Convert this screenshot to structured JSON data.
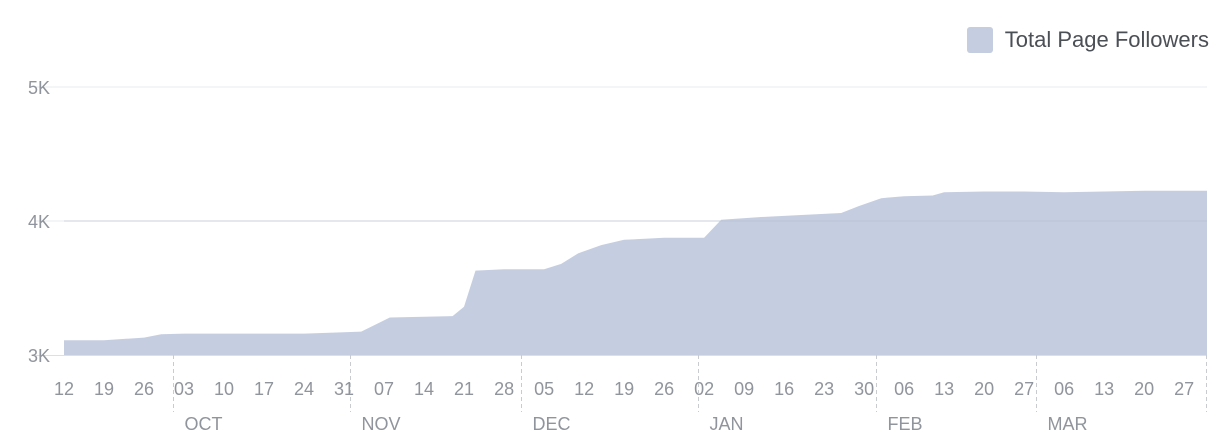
{
  "chart_data": {
    "type": "area",
    "legend": {
      "label": "Total Page Followers",
      "position": "top-right"
    },
    "colors": {
      "fill": "#c5cde0",
      "grid": "#e9ebee",
      "tick_text": "#90949c",
      "divider": "#c8cbd0"
    },
    "ylim": [
      3000,
      5000
    ],
    "yticks": [
      {
        "value": 3000,
        "label": "3K"
      },
      {
        "value": 4000,
        "label": "4K"
      },
      {
        "value": 5000,
        "label": "5K"
      }
    ],
    "xlim": [
      "2017-09-12",
      "2018-03-31"
    ],
    "xticks": [
      {
        "date": "2017-09-12",
        "label": "12"
      },
      {
        "date": "2017-09-19",
        "label": "19"
      },
      {
        "date": "2017-09-26",
        "label": "26"
      },
      {
        "date": "2017-10-03",
        "label": "03"
      },
      {
        "date": "2017-10-10",
        "label": "10"
      },
      {
        "date": "2017-10-17",
        "label": "17"
      },
      {
        "date": "2017-10-24",
        "label": "24"
      },
      {
        "date": "2017-10-31",
        "label": "31"
      },
      {
        "date": "2017-11-07",
        "label": "07"
      },
      {
        "date": "2017-11-14",
        "label": "14"
      },
      {
        "date": "2017-11-21",
        "label": "21"
      },
      {
        "date": "2017-11-28",
        "label": "28"
      },
      {
        "date": "2017-12-05",
        "label": "05"
      },
      {
        "date": "2017-12-12",
        "label": "12"
      },
      {
        "date": "2017-12-19",
        "label": "19"
      },
      {
        "date": "2017-12-26",
        "label": "26"
      },
      {
        "date": "2018-01-02",
        "label": "02"
      },
      {
        "date": "2018-01-09",
        "label": "09"
      },
      {
        "date": "2018-01-16",
        "label": "16"
      },
      {
        "date": "2018-01-23",
        "label": "23"
      },
      {
        "date": "2018-01-30",
        "label": "30"
      },
      {
        "date": "2018-02-06",
        "label": "06"
      },
      {
        "date": "2018-02-13",
        "label": "13"
      },
      {
        "date": "2018-02-20",
        "label": "20"
      },
      {
        "date": "2018-02-27",
        "label": "27"
      },
      {
        "date": "2018-03-06",
        "label": "06"
      },
      {
        "date": "2018-03-13",
        "label": "13"
      },
      {
        "date": "2018-03-20",
        "label": "20"
      },
      {
        "date": "2018-03-27",
        "label": "27"
      }
    ],
    "months": [
      {
        "label": "OCT",
        "start": "2017-10-01"
      },
      {
        "label": "NOV",
        "start": "2017-11-01"
      },
      {
        "label": "DEC",
        "start": "2017-12-01"
      },
      {
        "label": "JAN",
        "start": "2018-01-01"
      },
      {
        "label": "FEB",
        "start": "2018-02-01"
      },
      {
        "label": "MAR",
        "start": "2018-03-01"
      }
    ],
    "series": [
      {
        "points": [
          [
            "2017-09-12",
            3110
          ],
          [
            "2017-09-19",
            3110
          ],
          [
            "2017-09-26",
            3130
          ],
          [
            "2017-09-29",
            3155
          ],
          [
            "2017-10-03",
            3160
          ],
          [
            "2017-10-17",
            3160
          ],
          [
            "2017-10-24",
            3160
          ],
          [
            "2017-10-31",
            3170
          ],
          [
            "2017-11-03",
            3175
          ],
          [
            "2017-11-08",
            3280
          ],
          [
            "2017-11-19",
            3290
          ],
          [
            "2017-11-21",
            3360
          ],
          [
            "2017-11-23",
            3630
          ],
          [
            "2017-11-28",
            3640
          ],
          [
            "2017-12-05",
            3640
          ],
          [
            "2017-12-08",
            3680
          ],
          [
            "2017-12-11",
            3760
          ],
          [
            "2017-12-15",
            3820
          ],
          [
            "2017-12-19",
            3860
          ],
          [
            "2017-12-26",
            3875
          ],
          [
            "2018-01-02",
            3875
          ],
          [
            "2018-01-05",
            4010
          ],
          [
            "2018-01-12",
            4030
          ],
          [
            "2018-01-19",
            4045
          ],
          [
            "2018-01-26",
            4060
          ],
          [
            "2018-01-29",
            4110
          ],
          [
            "2018-02-02",
            4170
          ],
          [
            "2018-02-06",
            4185
          ],
          [
            "2018-02-11",
            4190
          ],
          [
            "2018-02-13",
            4215
          ],
          [
            "2018-02-20",
            4220
          ],
          [
            "2018-02-27",
            4220
          ],
          [
            "2018-03-06",
            4215
          ],
          [
            "2018-03-13",
            4220
          ],
          [
            "2018-03-20",
            4225
          ],
          [
            "2018-03-31",
            4225
          ]
        ]
      }
    ]
  }
}
